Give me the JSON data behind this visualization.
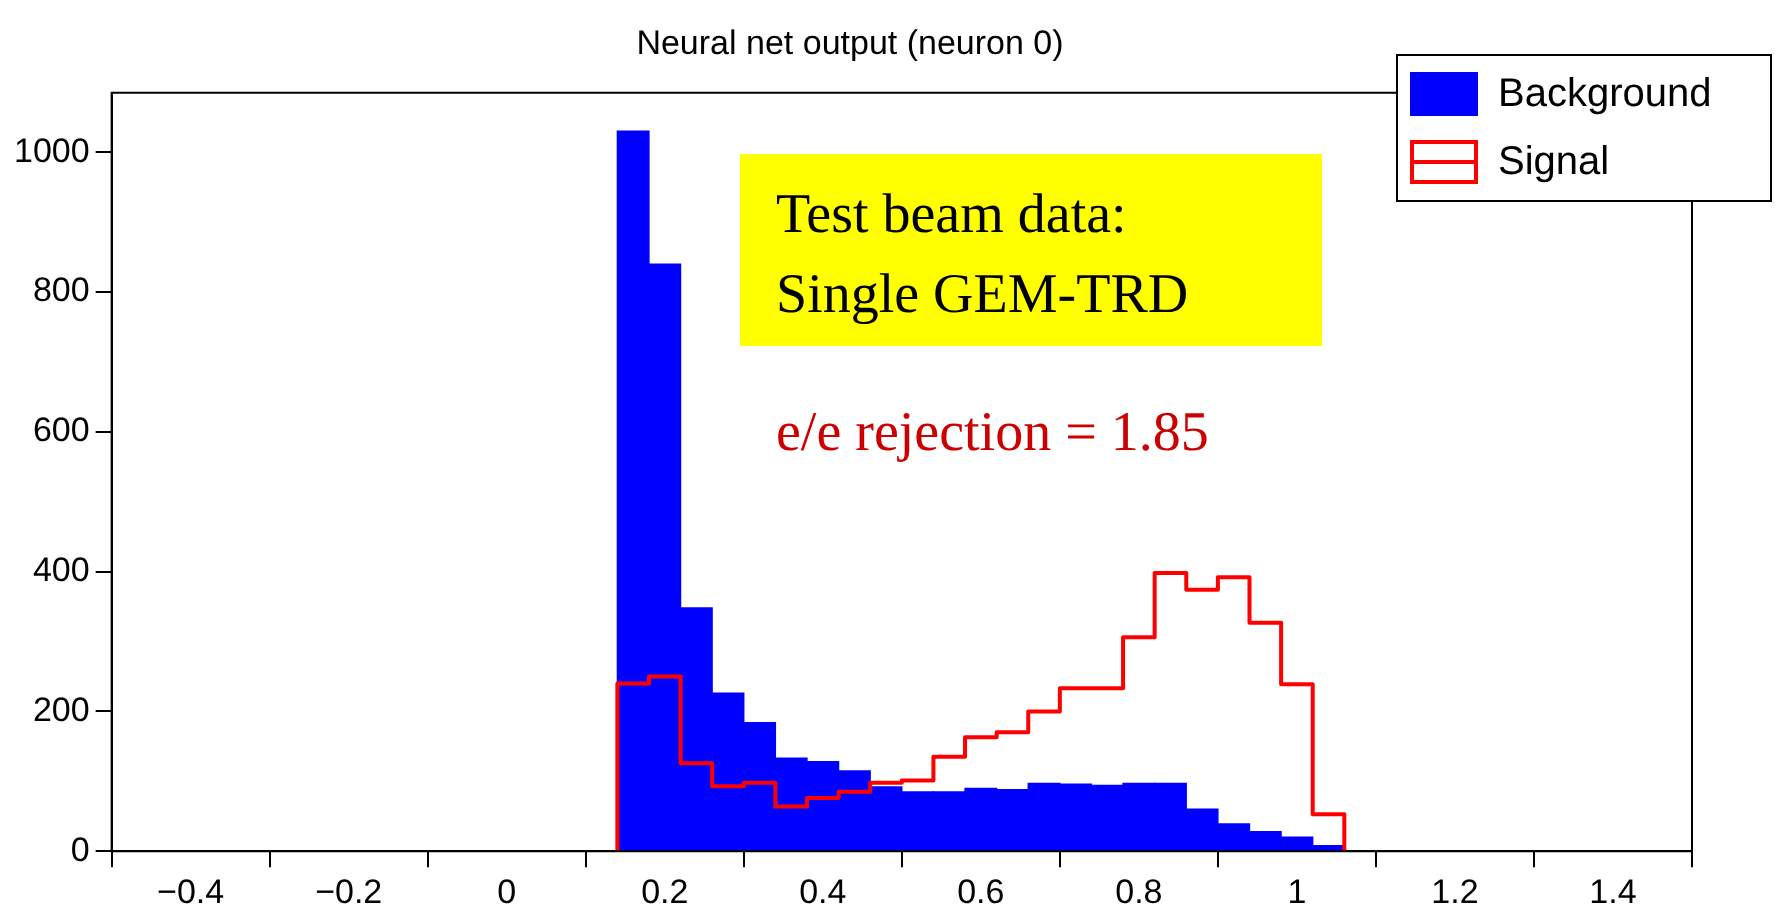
{
  "chart_data": {
    "type": "histogram",
    "title": "Neural net output (neuron 0)",
    "bins": [
      0.14,
      0.18,
      0.22,
      0.26,
      0.3,
      0.34,
      0.38,
      0.42,
      0.46,
      0.5,
      0.54,
      0.58,
      0.62,
      0.66,
      0.7,
      0.74,
      0.78,
      0.82,
      0.86,
      0.9,
      0.94,
      0.98,
      1.02,
      1.06
    ],
    "series": [
      {
        "name": "Background",
        "color": "#0000ff",
        "values": [
          1030,
          840,
          348,
          226,
          184,
          133,
          128,
          115,
          92,
          85,
          85,
          90,
          88,
          97,
          96,
          94,
          97,
          97,
          60,
          39,
          28,
          20,
          8
        ]
      },
      {
        "name": "Signal",
        "color": "#ff0000",
        "values": [
          240,
          250,
          126,
          93,
          98,
          64,
          76,
          85,
          98,
          101,
          135,
          163,
          170,
          200,
          233,
          233,
          306,
          398,
          374,
          392,
          327,
          239,
          53
        ]
      }
    ],
    "xlim": [
      -0.5,
      1.5
    ],
    "xticks": [
      -0.4,
      -0.2,
      0,
      0.2,
      0.4,
      0.6,
      0.8,
      1,
      1.2,
      1.4
    ],
    "ylim": [
      0,
      1085
    ],
    "yticks": [
      0,
      200,
      400,
      600,
      800,
      1000
    ],
    "grid": false,
    "legend": "top right",
    "annotations": [
      "Test beam data:\nSingle GEM-TRD",
      "e/e rejection = 1.85"
    ]
  }
}
